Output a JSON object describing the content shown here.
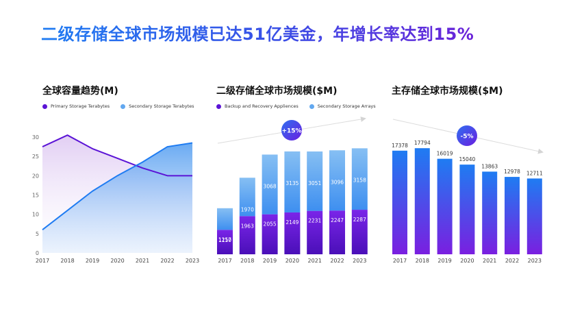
{
  "headline": "二级存储全球市场规模已达51亿美金，年增长率达到15%",
  "colors": {
    "purple": "#5b14d6",
    "blue": "#1f7cf2",
    "lightblue": "#8ec2f5"
  },
  "chart_data": [
    {
      "type": "area",
      "title": "全球容量趋势(M)",
      "x": [
        "2017",
        "2018",
        "2019",
        "2020",
        "2021",
        "2022",
        "2023"
      ],
      "yticks": [
        "0",
        "5",
        "10",
        "15",
        "20",
        "25",
        "30"
      ],
      "ylim": [
        0,
        30
      ],
      "series": [
        {
          "name": "Primary Storage Terabytes",
          "color": "#5b14d6",
          "values": [
            27.5,
            30.5,
            27,
            24.5,
            22,
            20,
            20
          ]
        },
        {
          "name": "Secondary Storage Terabytes",
          "color": "#1f7cf2",
          "values": [
            6,
            11,
            16,
            20,
            23.5,
            27.5,
            28.5
          ]
        }
      ]
    },
    {
      "type": "bar",
      "stacked": true,
      "title": "二级存储全球市场规模($M)",
      "badge": "+15%",
      "categories": [
        "2017",
        "2018",
        "2019",
        "2020",
        "2021",
        "2022",
        "2023"
      ],
      "series": [
        {
          "name": "Backup and Recovery Appliences",
          "color": "#5b14d6",
          "values": [
            1257,
            1963,
            2055,
            2149,
            2231,
            2247,
            2287
          ]
        },
        {
          "name": "Secondary Storage Arrays",
          "color": "#8ec2f5",
          "values": [
            1110,
            1970,
            3068,
            3135,
            3051,
            3096,
            3158
          ]
        }
      ]
    },
    {
      "type": "bar",
      "title": "主存储全球市场规模($M)",
      "badge": "-5%",
      "categories": [
        "2017",
        "2018",
        "2019",
        "2020",
        "2021",
        "2022",
        "2023"
      ],
      "values": [
        17378,
        17794,
        16019,
        15040,
        13863,
        12978,
        12711
      ]
    }
  ]
}
